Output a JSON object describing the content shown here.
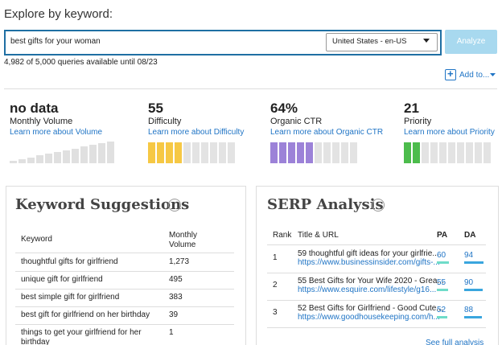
{
  "header": {
    "title": "Explore by keyword:"
  },
  "search": {
    "query": "best gifts for your woman",
    "locale": "United States - en-US",
    "button": "Analyze",
    "quota": "4,982 of 5,000 queries available until 08/23",
    "add_to": "Add to..."
  },
  "metrics": [
    {
      "value": "no data",
      "label": "Monthly Volume",
      "link": "Learn more about Volume"
    },
    {
      "value": "55",
      "label": "Difficulty",
      "link": "Learn more about Difficulty"
    },
    {
      "value": "64%",
      "label": "Organic CTR",
      "link": "Learn more about Organic CTR"
    },
    {
      "value": "21",
      "label": "Priority",
      "link": "Learn more about Priority"
    }
  ],
  "keyword_suggestions": {
    "title": "Keyword Suggestions",
    "columns": [
      "Keyword",
      "Monthly Volume"
    ],
    "rows": [
      [
        "thoughtful gifts for girlfriend",
        "1,273"
      ],
      [
        "unique gift for girlfriend",
        "495"
      ],
      [
        "best simple gift for girlfriend",
        "383"
      ],
      [
        "best gift for girlfriend on her birthday",
        "39"
      ],
      [
        "things to get your girlfriend for her birthday",
        "1"
      ]
    ]
  },
  "serp_analysis": {
    "title": "SERP Analysis",
    "columns": [
      "Rank",
      "Title & URL",
      "PA",
      "DA"
    ],
    "rows": [
      {
        "rank": "1",
        "title": "59 thoughtful gift ideas for your girlfrie...",
        "url": "https://www.businessinsider.com/gifts-...",
        "pa": "60",
        "da": "94"
      },
      {
        "rank": "2",
        "title": "55 Best Gifts for Your Wife 2020 - Grea...",
        "url": "https://www.esquire.com/lifestyle/g16...",
        "pa": "55",
        "da": "90"
      },
      {
        "rank": "3",
        "title": "52 Best Gifts for Girlfriend - Good Cute...",
        "url": "https://www.goodhousekeeping.com/h...",
        "pa": "52",
        "da": "88"
      }
    ],
    "footer": "See full analysis"
  }
}
